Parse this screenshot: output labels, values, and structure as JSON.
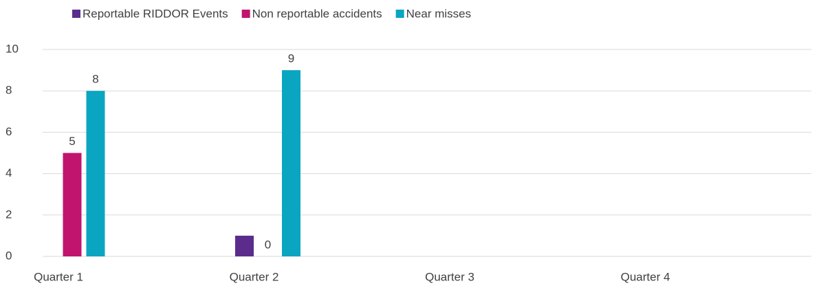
{
  "chart_data": {
    "type": "bar",
    "categories": [
      "Quarter 1",
      "Quarter 2",
      "Quarter 3",
      "Quarter 4"
    ],
    "series": [
      {
        "name": "Reportable RIDDOR Events",
        "color": "#5b2c8c",
        "values": [
          null,
          1,
          null,
          null
        ],
        "data_labels": false
      },
      {
        "name": "Non reportable accidents",
        "color": "#c0146f",
        "values": [
          5,
          0,
          null,
          null
        ],
        "data_labels": true
      },
      {
        "name": "Near misses",
        "color": "#0aa5c1",
        "values": [
          8,
          9,
          null,
          null
        ],
        "data_labels": true
      }
    ],
    "ylim": [
      0,
      10
    ],
    "yticks": [
      0,
      2,
      4,
      6,
      8,
      10
    ],
    "grid": true,
    "legend": "top"
  }
}
